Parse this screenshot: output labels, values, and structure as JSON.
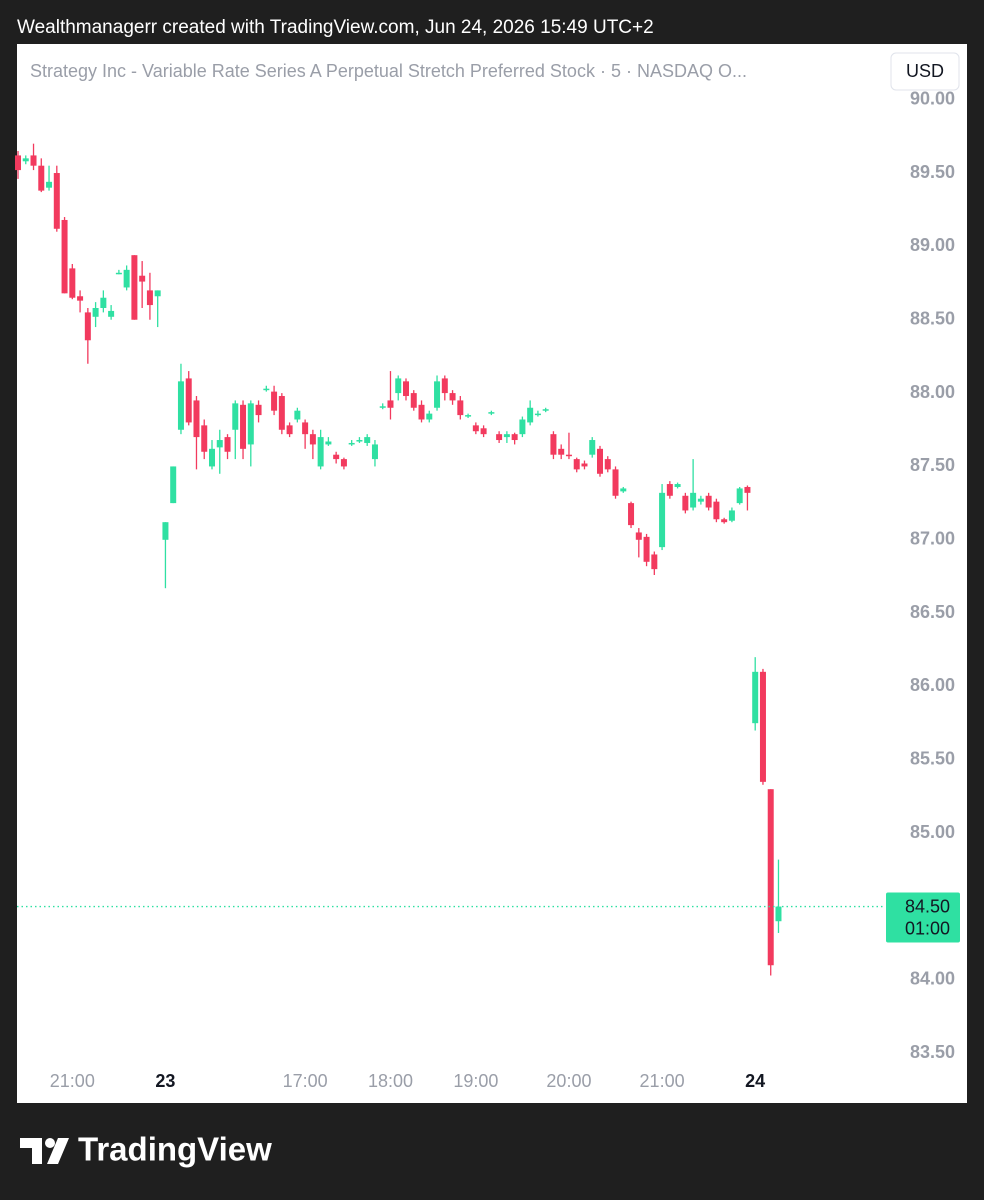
{
  "header": "Wealthmanagerr created with TradingView.com, Jun 24, 2026 15:49 UTC+2",
  "brand": "TradingView",
  "chart_data": {
    "type": "candlestick",
    "title": "Strategy Inc - Variable Rate Series A Perpetual Stretch Preferred Stock · 5 · NASDAQ  O...",
    "currency": "USD",
    "up_color": "#2fe0a2",
    "down_color": "#f23a5e",
    "categories": [
      null,
      null,
      null,
      null,
      null,
      null,
      null,
      "21:00",
      null,
      null,
      null,
      null,
      null,
      null,
      null,
      null,
      null,
      null,
      null,
      "23",
      null,
      null,
      null,
      null,
      null,
      null,
      null,
      null,
      null,
      null,
      null,
      null,
      null,
      null,
      null,
      null,
      null,
      "17:00",
      null,
      null,
      null,
      null,
      null,
      null,
      null,
      null,
      null,
      null,
      "18:00",
      null,
      null,
      null,
      null,
      null,
      null,
      null,
      null,
      null,
      null,
      "19:00",
      null,
      null,
      null,
      null,
      null,
      null,
      null,
      null,
      null,
      null,
      null,
      "20:00",
      null,
      null,
      null,
      null,
      null,
      null,
      null,
      null,
      null,
      null,
      null,
      "21:00",
      null,
      null,
      null,
      null,
      null,
      null,
      null,
      null,
      null,
      null,
      null,
      "24",
      null,
      null,
      null
    ],
    "open": [
      89.62,
      89.58,
      89.62,
      89.55,
      89.4,
      89.5,
      89.18,
      88.85,
      88.66,
      88.55,
      88.52,
      88.58,
      88.52,
      88.82,
      88.72,
      88.94,
      88.8,
      88.7,
      88.66,
      87.0,
      87.25,
      87.75,
      88.1,
      87.95,
      87.78,
      87.5,
      87.63,
      87.7,
      87.75,
      87.92,
      87.65,
      87.92,
      88.02,
      88.01,
      87.98,
      87.78,
      87.82,
      87.8,
      87.72,
      87.5,
      87.65,
      87.58,
      87.55,
      87.65,
      87.67,
      87.66,
      87.55,
      87.9,
      87.95,
      88.0,
      88.08,
      88.0,
      87.92,
      87.82,
      87.9,
      88.1,
      88.0,
      87.95,
      87.84,
      87.78,
      87.76,
      87.86,
      87.72,
      87.7,
      87.72,
      87.72,
      87.8,
      87.85,
      87.88,
      87.72,
      87.62,
      87.58,
      87.55,
      87.52,
      87.58,
      87.62,
      87.55,
      87.48,
      87.33,
      87.25,
      87.05,
      87.02,
      86.9,
      86.95,
      87.38,
      87.36,
      87.3,
      87.22,
      87.26,
      87.3,
      87.26,
      87.14,
      87.13,
      87.25,
      87.36,
      85.75,
      86.1,
      85.3,
      84.4
    ],
    "high": [
      89.65,
      89.62,
      89.7,
      89.6,
      89.55,
      89.55,
      89.2,
      88.88,
      88.7,
      88.58,
      88.62,
      88.7,
      88.6,
      88.84,
      88.87,
      88.94,
      88.9,
      88.82,
      88.7,
      87.12,
      87.5,
      88.2,
      88.15,
      87.98,
      87.82,
      87.68,
      87.75,
      87.72,
      87.95,
      87.95,
      87.95,
      87.95,
      88.05,
      88.05,
      88.0,
      87.8,
      87.9,
      87.82,
      87.75,
      87.75,
      87.7,
      87.6,
      87.56,
      87.68,
      87.7,
      87.72,
      87.68,
      87.93,
      88.15,
      88.12,
      88.1,
      88.02,
      87.95,
      87.88,
      88.12,
      88.12,
      88.02,
      87.98,
      87.86,
      87.8,
      87.78,
      87.88,
      87.74,
      87.74,
      87.73,
      87.84,
      87.95,
      87.88,
      87.9,
      87.74,
      87.65,
      87.73,
      87.56,
      87.54,
      87.7,
      87.64,
      87.57,
      87.5,
      87.36,
      87.26,
      87.08,
      87.04,
      86.92,
      87.38,
      87.4,
      87.39,
      87.32,
      87.55,
      87.3,
      87.32,
      87.28,
      87.15,
      87.22,
      87.36,
      87.37,
      86.2,
      86.12,
      85.3,
      84.82
    ],
    "low": [
      89.46,
      89.56,
      89.52,
      89.37,
      89.38,
      89.1,
      88.68,
      88.64,
      88.55,
      88.2,
      88.45,
      88.55,
      88.5,
      88.81,
      88.7,
      88.5,
      88.58,
      88.5,
      88.45,
      86.67,
      87.25,
      87.72,
      87.78,
      87.48,
      87.55,
      87.48,
      87.45,
      87.55,
      87.55,
      87.55,
      87.5,
      87.8,
      88.01,
      87.85,
      87.72,
      87.7,
      87.8,
      87.62,
      87.55,
      87.48,
      87.64,
      87.52,
      87.48,
      87.64,
      87.66,
      87.64,
      87.5,
      87.89,
      87.82,
      87.95,
      87.95,
      87.88,
      87.8,
      87.8,
      87.88,
      87.95,
      87.92,
      87.82,
      87.83,
      87.72,
      87.7,
      87.85,
      87.66,
      87.66,
      87.65,
      87.7,
      87.78,
      87.84,
      87.87,
      87.55,
      87.55,
      87.55,
      87.46,
      87.48,
      87.56,
      87.43,
      87.46,
      87.28,
      87.32,
      87.08,
      86.88,
      86.82,
      86.76,
      86.93,
      87.28,
      87.35,
      87.18,
      87.2,
      87.24,
      87.2,
      87.12,
      87.11,
      87.12,
      87.24,
      87.2,
      85.7,
      85.33,
      84.03,
      84.32
    ],
    "close": [
      89.52,
      89.6,
      89.55,
      89.38,
      89.44,
      89.12,
      88.68,
      88.65,
      88.63,
      88.36,
      88.58,
      88.65,
      88.56,
      88.82,
      88.84,
      88.5,
      88.76,
      88.6,
      88.7,
      87.12,
      87.5,
      88.08,
      87.8,
      87.7,
      87.6,
      87.62,
      87.68,
      87.6,
      87.93,
      87.62,
      87.93,
      87.85,
      88.03,
      87.88,
      87.75,
      87.72,
      87.88,
      87.72,
      87.65,
      87.7,
      87.67,
      87.55,
      87.5,
      87.66,
      87.68,
      87.7,
      87.65,
      87.91,
      87.9,
      88.1,
      87.98,
      87.9,
      87.82,
      87.86,
      88.08,
      88.0,
      87.95,
      87.85,
      87.85,
      87.74,
      87.72,
      87.87,
      87.68,
      87.72,
      87.68,
      87.82,
      87.9,
      87.86,
      87.89,
      87.58,
      87.58,
      87.57,
      87.48,
      87.5,
      87.68,
      87.45,
      87.48,
      87.3,
      87.35,
      87.1,
      87.0,
      86.85,
      86.8,
      87.32,
      87.3,
      87.38,
      87.2,
      87.32,
      87.28,
      87.22,
      87.14,
      87.12,
      87.2,
      87.35,
      87.32,
      86.1,
      85.35,
      84.1,
      84.5
    ],
    "ylim": [
      83.42,
      90.1
    ],
    "yticks": [
      {
        "value": 83.5,
        "label": "83.50"
      },
      {
        "value": 84,
        "label": "84.00"
      },
      {
        "value": 84.5,
        "label": "84.50"
      },
      {
        "value": 85,
        "label": "85.00"
      },
      {
        "value": 85.5,
        "label": "85.50"
      },
      {
        "value": 86,
        "label": "86.00"
      },
      {
        "value": 86.5,
        "label": "86.50"
      },
      {
        "value": 87,
        "label": "87.00"
      },
      {
        "value": 87.5,
        "label": "87.50"
      },
      {
        "value": 88,
        "label": "88.00"
      },
      {
        "value": 88.5,
        "label": "88.50"
      },
      {
        "value": 89,
        "label": "89.00"
      },
      {
        "value": 89.5,
        "label": "89.50"
      },
      {
        "value": 90,
        "label": "90.00"
      }
    ],
    "last_price": {
      "value": 84.5,
      "label": "84.50"
    },
    "countdown": "01:00"
  }
}
